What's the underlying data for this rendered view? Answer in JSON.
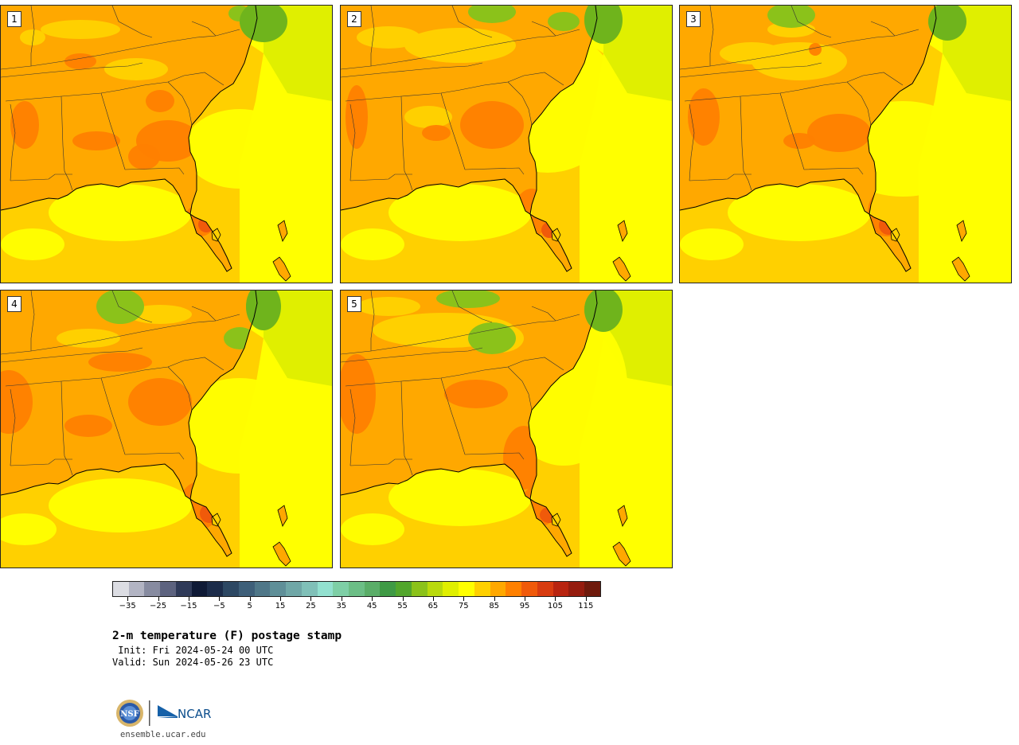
{
  "panels": [
    {
      "label": "1",
      "variant": 0
    },
    {
      "label": "2",
      "variant": 1
    },
    {
      "label": "3",
      "variant": 2
    },
    {
      "label": "4",
      "variant": 3
    },
    {
      "label": "5",
      "variant": 4
    }
  ],
  "colorbar": {
    "colors": [
      "#dcdde3",
      "#b2b4c3",
      "#878ba0",
      "#5d637f",
      "#2f3a58",
      "#0f1a36",
      "#1c2c4a",
      "#2d4863",
      "#3e5f79",
      "#4f7788",
      "#5f8f98",
      "#70a7a7",
      "#80c0b8",
      "#92e0cf",
      "#7ecfa6",
      "#6cbe86",
      "#5aad68",
      "#3f9a45",
      "#52a62c",
      "#8bc21a",
      "#b9da0c",
      "#e0ef00",
      "#ffff00",
      "#ffd000",
      "#ffa800",
      "#ff8000",
      "#f05a0a",
      "#d83c10",
      "#b82410",
      "#951c0e",
      "#6e1a0c"
    ],
    "tick_values": [
      -35,
      -25,
      -15,
      -5,
      5,
      15,
      25,
      35,
      45,
      55,
      65,
      75,
      85,
      95,
      105,
      115
    ],
    "tick_labels": [
      "−35",
      "−25",
      "−15",
      "−5",
      "5",
      "15",
      "25",
      "35",
      "45",
      "55",
      "65",
      "75",
      "85",
      "95",
      "105",
      "115"
    ],
    "range": [
      -40,
      120
    ]
  },
  "title": "2-m temperature (F) postage stamp",
  "init_text": " Init: Fri 2024-05-24 00 UTC",
  "valid_text": "Valid: Sun 2024-05-26 23 UTC",
  "logo_text": "NCAR",
  "seal_text": "NSF",
  "url": "ensemble.ucar.edu"
}
